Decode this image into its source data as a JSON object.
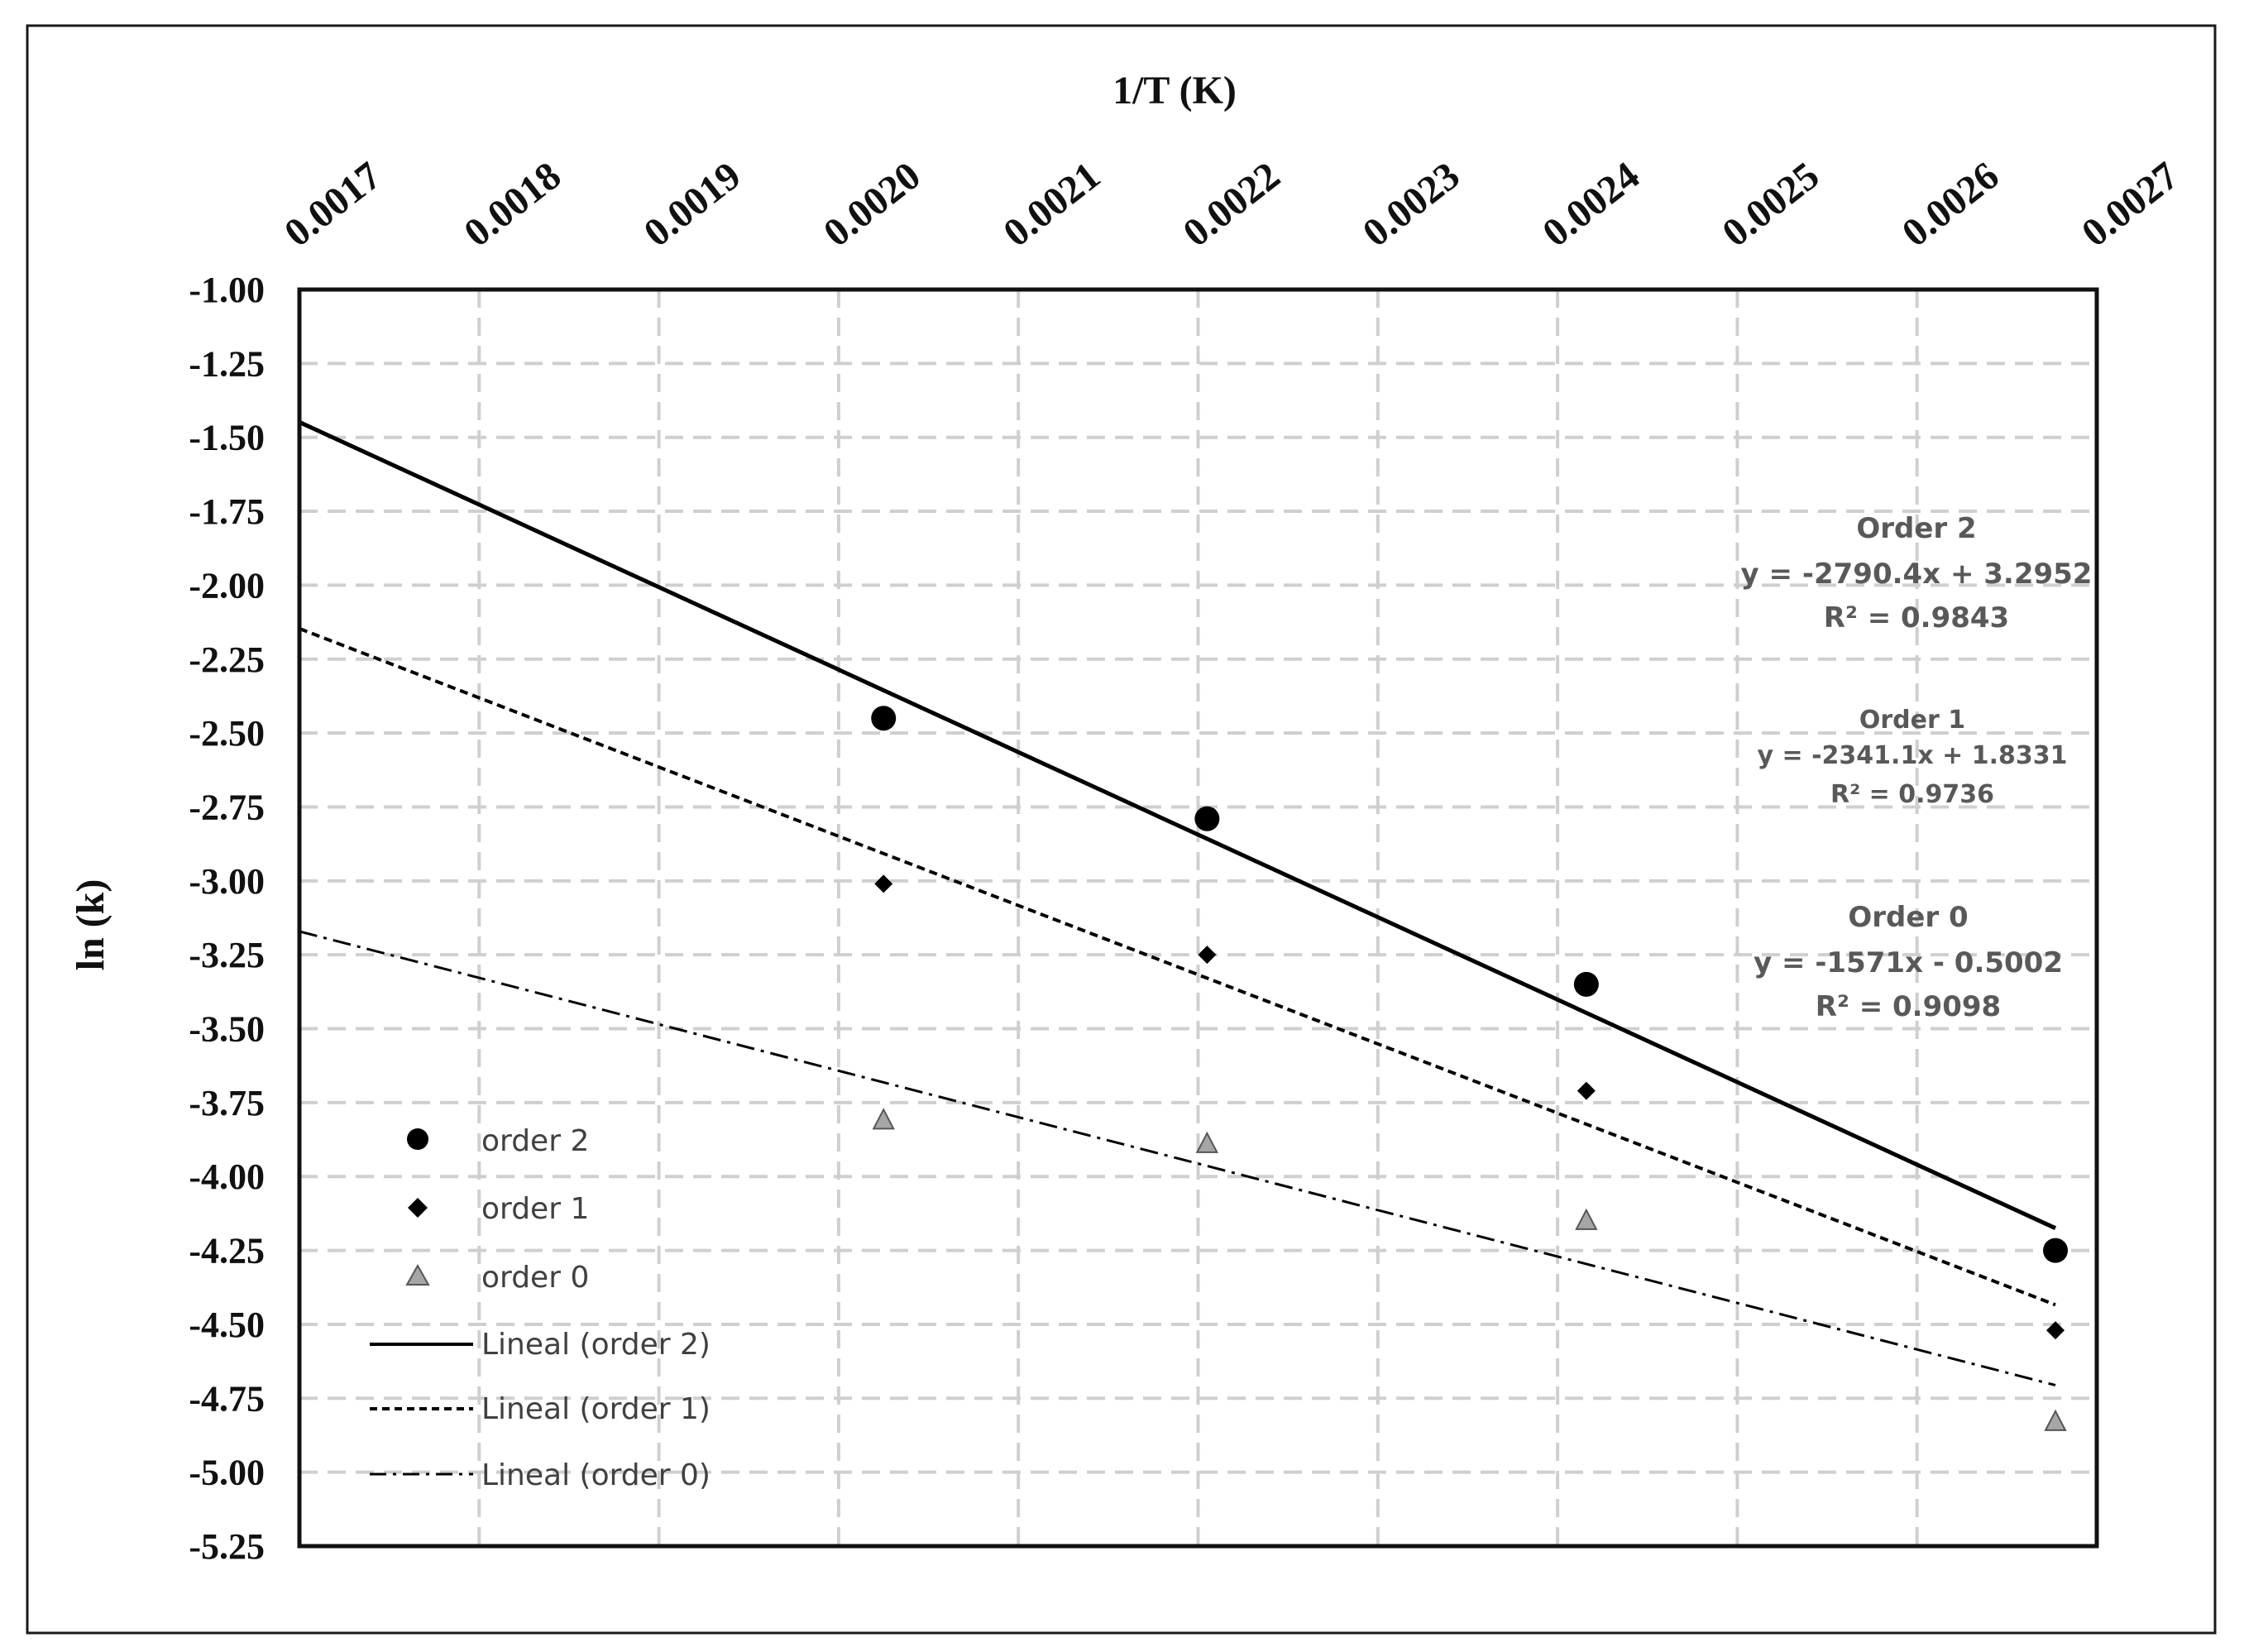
{
  "chart_data": {
    "type": "scatter",
    "xlabel": "1/T (K)",
    "ylabel": "ln (k)",
    "xlim": [
      0.0017,
      0.0027
    ],
    "ylim": [
      -5.25,
      -1.0
    ],
    "x_ticks": [
      "0.0017",
      "0.0018",
      "0.0019",
      "0.0020",
      "0.0021",
      "0.0022",
      "0.0023",
      "0.0024",
      "0.0025",
      "0.0026",
      "0.0027"
    ],
    "y_ticks": [
      "-1.00",
      "-1.25",
      "-1.50",
      "-1.75",
      "-2.00",
      "-2.25",
      "-2.50",
      "-2.75",
      "-3.00",
      "-3.25",
      "-3.50",
      "-3.75",
      "-4.00",
      "-4.25",
      "-4.50",
      "-4.75",
      "-5.00",
      "-5.25"
    ],
    "x_axis_position": "top",
    "grid": true,
    "legend_position": "bottom-left",
    "x": [
      0.002025,
      0.002205,
      0.002416,
      0.002677
    ],
    "series": [
      {
        "name": "order 2",
        "marker": "circle",
        "color": "#000000",
        "values": [
          -2.45,
          -2.79,
          -3.35,
          -4.25
        ]
      },
      {
        "name": "order 1",
        "marker": "diamond",
        "color": "#000000",
        "values": [
          -3.01,
          -3.25,
          -3.71,
          -4.52
        ]
      },
      {
        "name": "order 0",
        "marker": "triangle",
        "color": "#a6a6a6",
        "values": [
          -3.81,
          -3.89,
          -4.15,
          -4.83
        ]
      }
    ],
    "trendlines": [
      {
        "name": "Lineal (order 2)",
        "style": "solid",
        "slope": -2790.4,
        "intercept": 3.2952,
        "x_range": [
          0.0017,
          0.002677
        ]
      },
      {
        "name": "Lineal (order 1)",
        "style": "dashed",
        "slope": -2341.1,
        "intercept": 1.8331,
        "x_range": [
          0.0017,
          0.002677
        ]
      },
      {
        "name": "Lineal (order 0)",
        "style": "dashdot",
        "slope": -1571,
        "intercept": -0.5002,
        "x_range": [
          0.0017,
          0.002677
        ]
      }
    ],
    "annotations": [
      {
        "title": "Order 2",
        "equation": "y = -2790.4x + 3.2952",
        "r2": "R² = 0.9843"
      },
      {
        "title": "Order 1",
        "equation": "y = -2341.1x + 1.8331",
        "r2": "R² = 0.9736"
      },
      {
        "title": "Order 0",
        "equation": "y = -1571x - 0.5002",
        "r2": "R² = 0.9098"
      }
    ]
  }
}
